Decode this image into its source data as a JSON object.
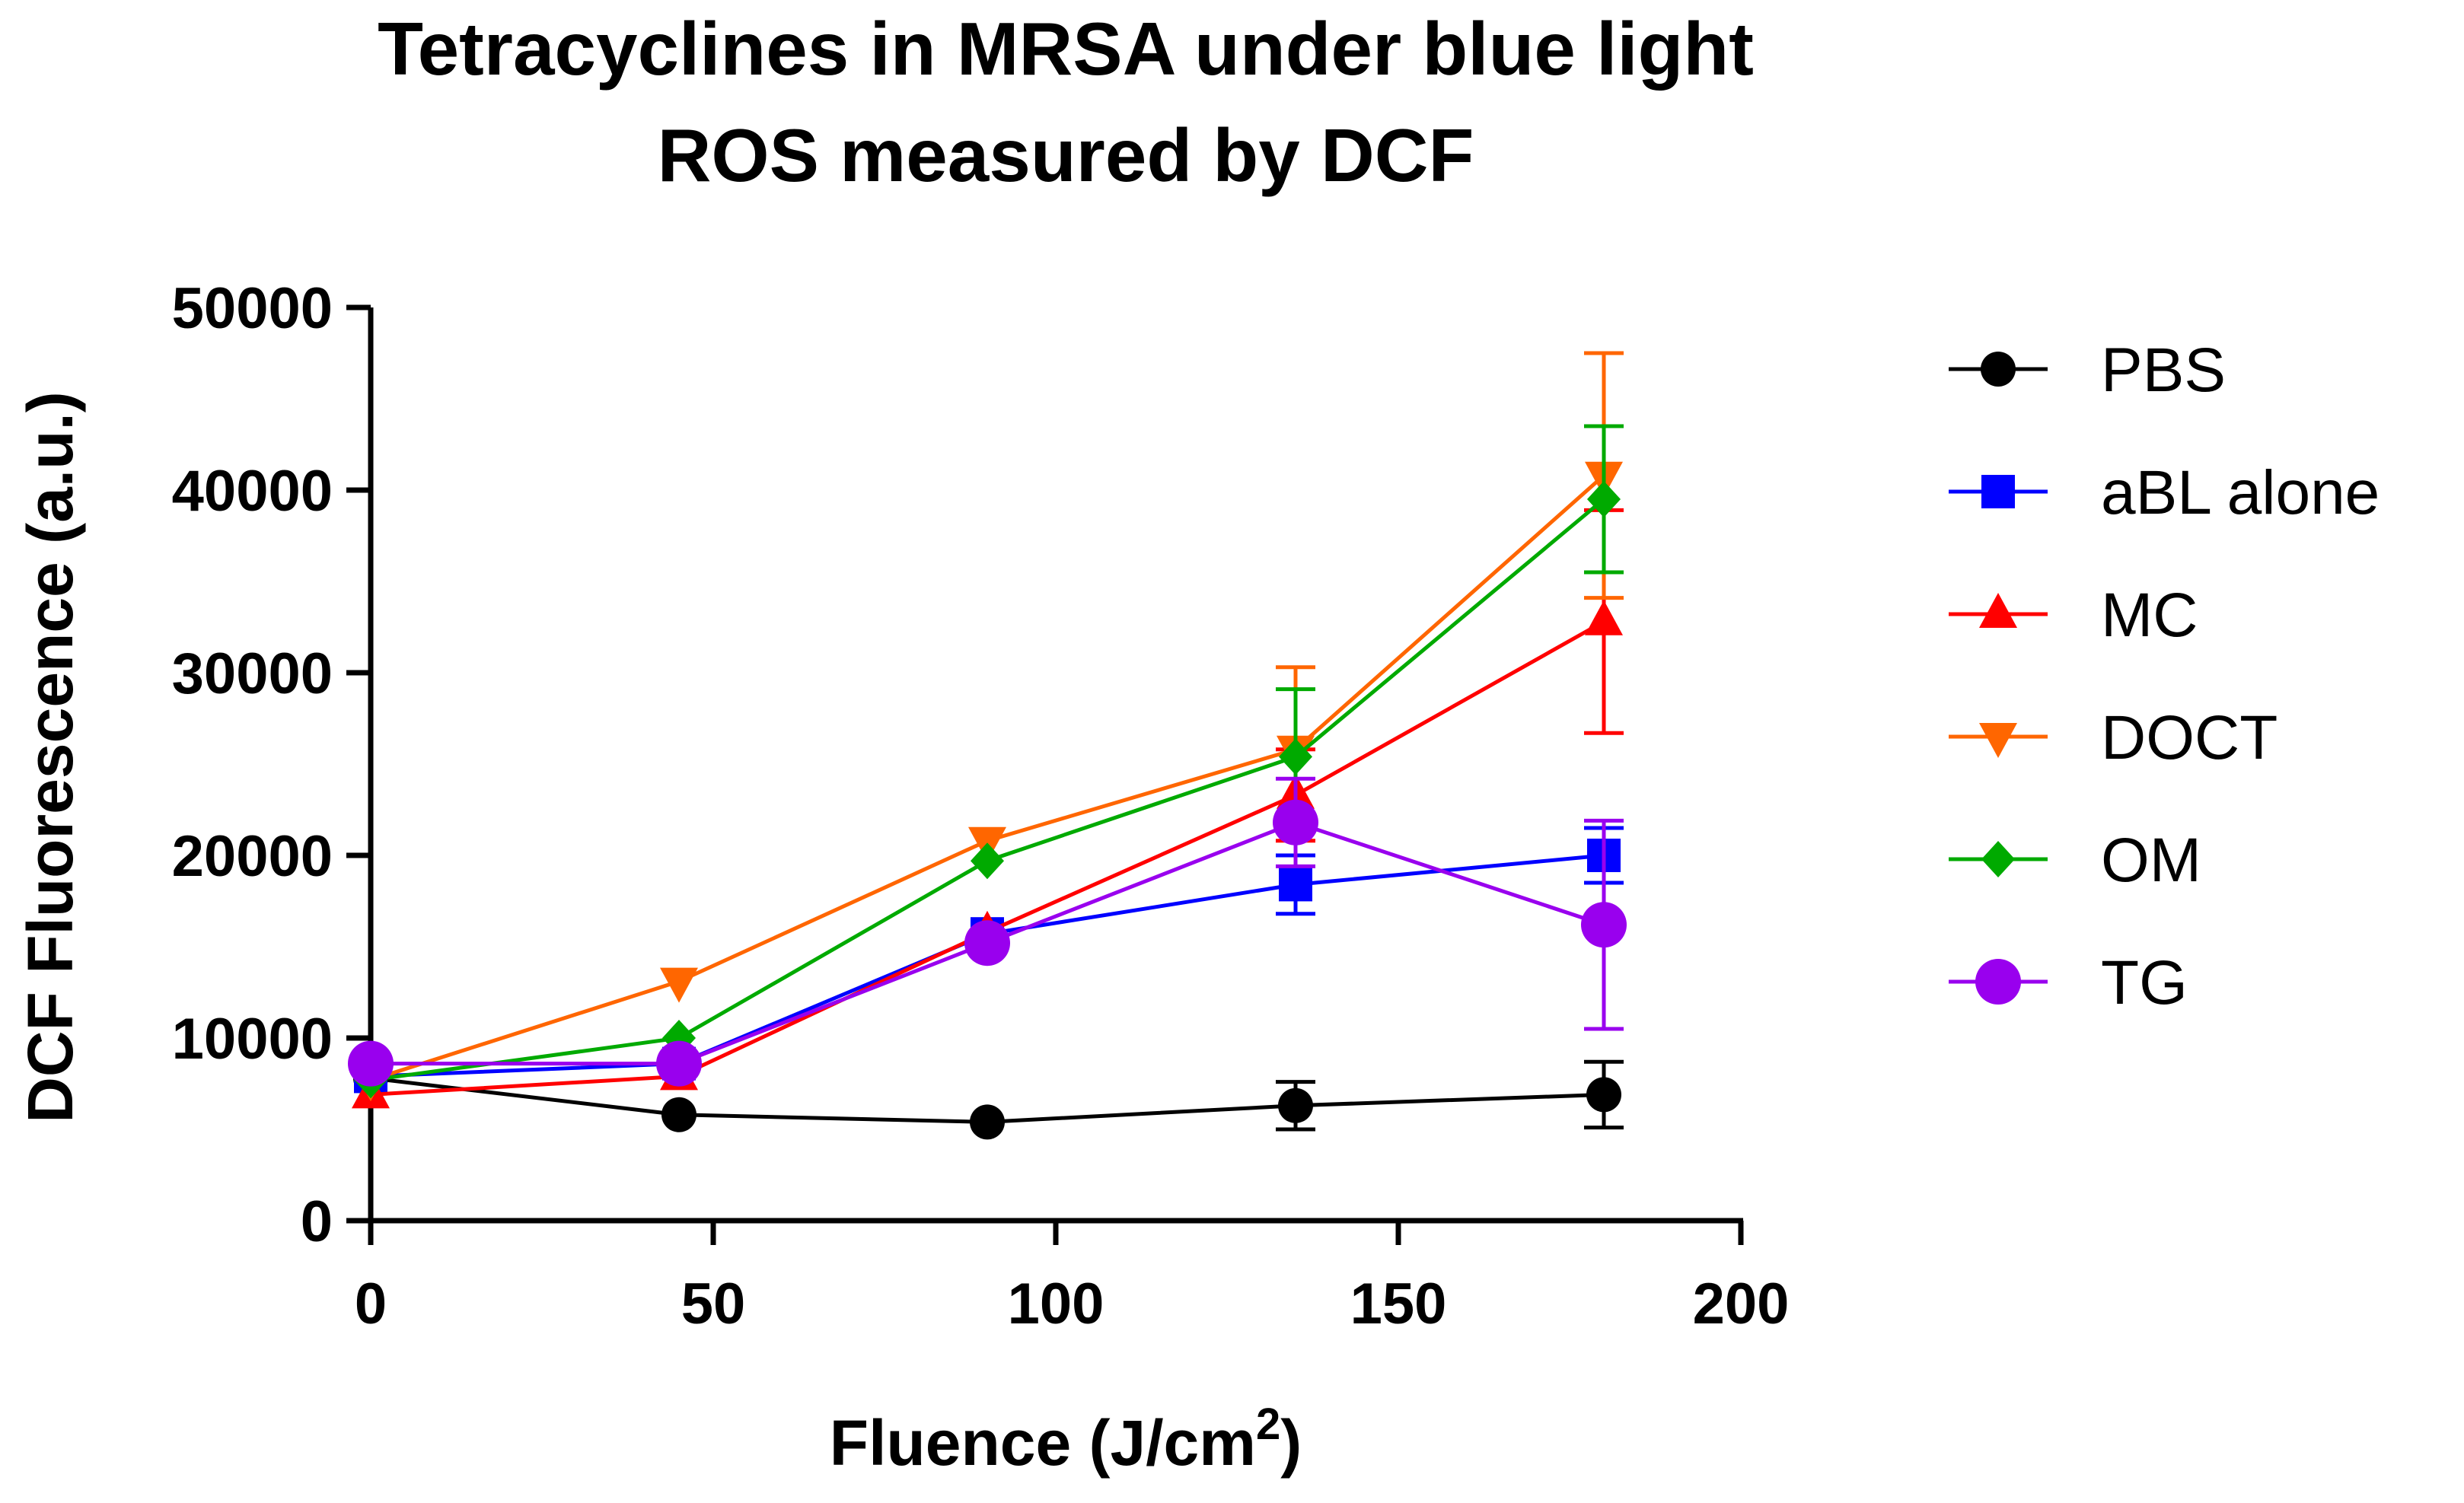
{
  "chart_data": {
    "type": "line",
    "title": "Tetracyclines in MRSA under blue light",
    "subtitle": "ROS measured by DCF",
    "xlabel": "Fluence (J/cm",
    "xlabel_sup": "2",
    "xlabel_suffix": ")",
    "ylabel": "DCF Fluorescence (a.u.)",
    "xlim": [
      0,
      200
    ],
    "ylim": [
      0,
      50000
    ],
    "xticks": [
      0,
      50,
      100,
      150,
      200
    ],
    "yticks": [
      0,
      10000,
      20000,
      30000,
      40000,
      50000
    ],
    "xtick_labels": [
      "0",
      "50",
      "100",
      "150",
      "200"
    ],
    "ytick_labels": [
      "0",
      "10000",
      "20000",
      "30000",
      "40000",
      "50000"
    ],
    "grid": false,
    "legend_position": "right",
    "x": [
      0,
      45,
      90,
      135,
      180
    ],
    "series": [
      {
        "name": "PBS",
        "color": "#000000",
        "marker": "circle",
        "values": [
          7800,
          5800,
          5400,
          6300,
          6900
        ],
        "errors": [
          0,
          0,
          0,
          1300,
          1800
        ]
      },
      {
        "name": "aBL alone",
        "color": "#0000FF",
        "marker": "square",
        "values": [
          7900,
          8600,
          15700,
          18400,
          20000
        ],
        "errors": [
          0,
          0,
          0,
          1600,
          1500
        ]
      },
      {
        "name": "MC",
        "color": "#FF0000",
        "marker": "triangle-up",
        "values": [
          6900,
          7900,
          15800,
          23300,
          32800
        ],
        "errors": [
          0,
          0,
          0,
          2500,
          6100
        ]
      },
      {
        "name": "DOCT",
        "color": "#FF6600",
        "marker": "triangle-down",
        "values": [
          7700,
          13100,
          20800,
          25800,
          40800
        ],
        "errors": [
          0,
          0,
          0,
          4500,
          6700
        ]
      },
      {
        "name": "OM",
        "color": "#00AA00",
        "marker": "diamond",
        "values": [
          7700,
          10000,
          19700,
          25400,
          39500
        ],
        "errors": [
          0,
          0,
          0,
          3700,
          4000
        ]
      },
      {
        "name": "TG",
        "color": "#9900EE",
        "marker": "circle-large",
        "values": [
          8600,
          8600,
          15200,
          21800,
          16200
        ],
        "errors": [
          0,
          0,
          0,
          2400,
          5700
        ]
      }
    ]
  }
}
